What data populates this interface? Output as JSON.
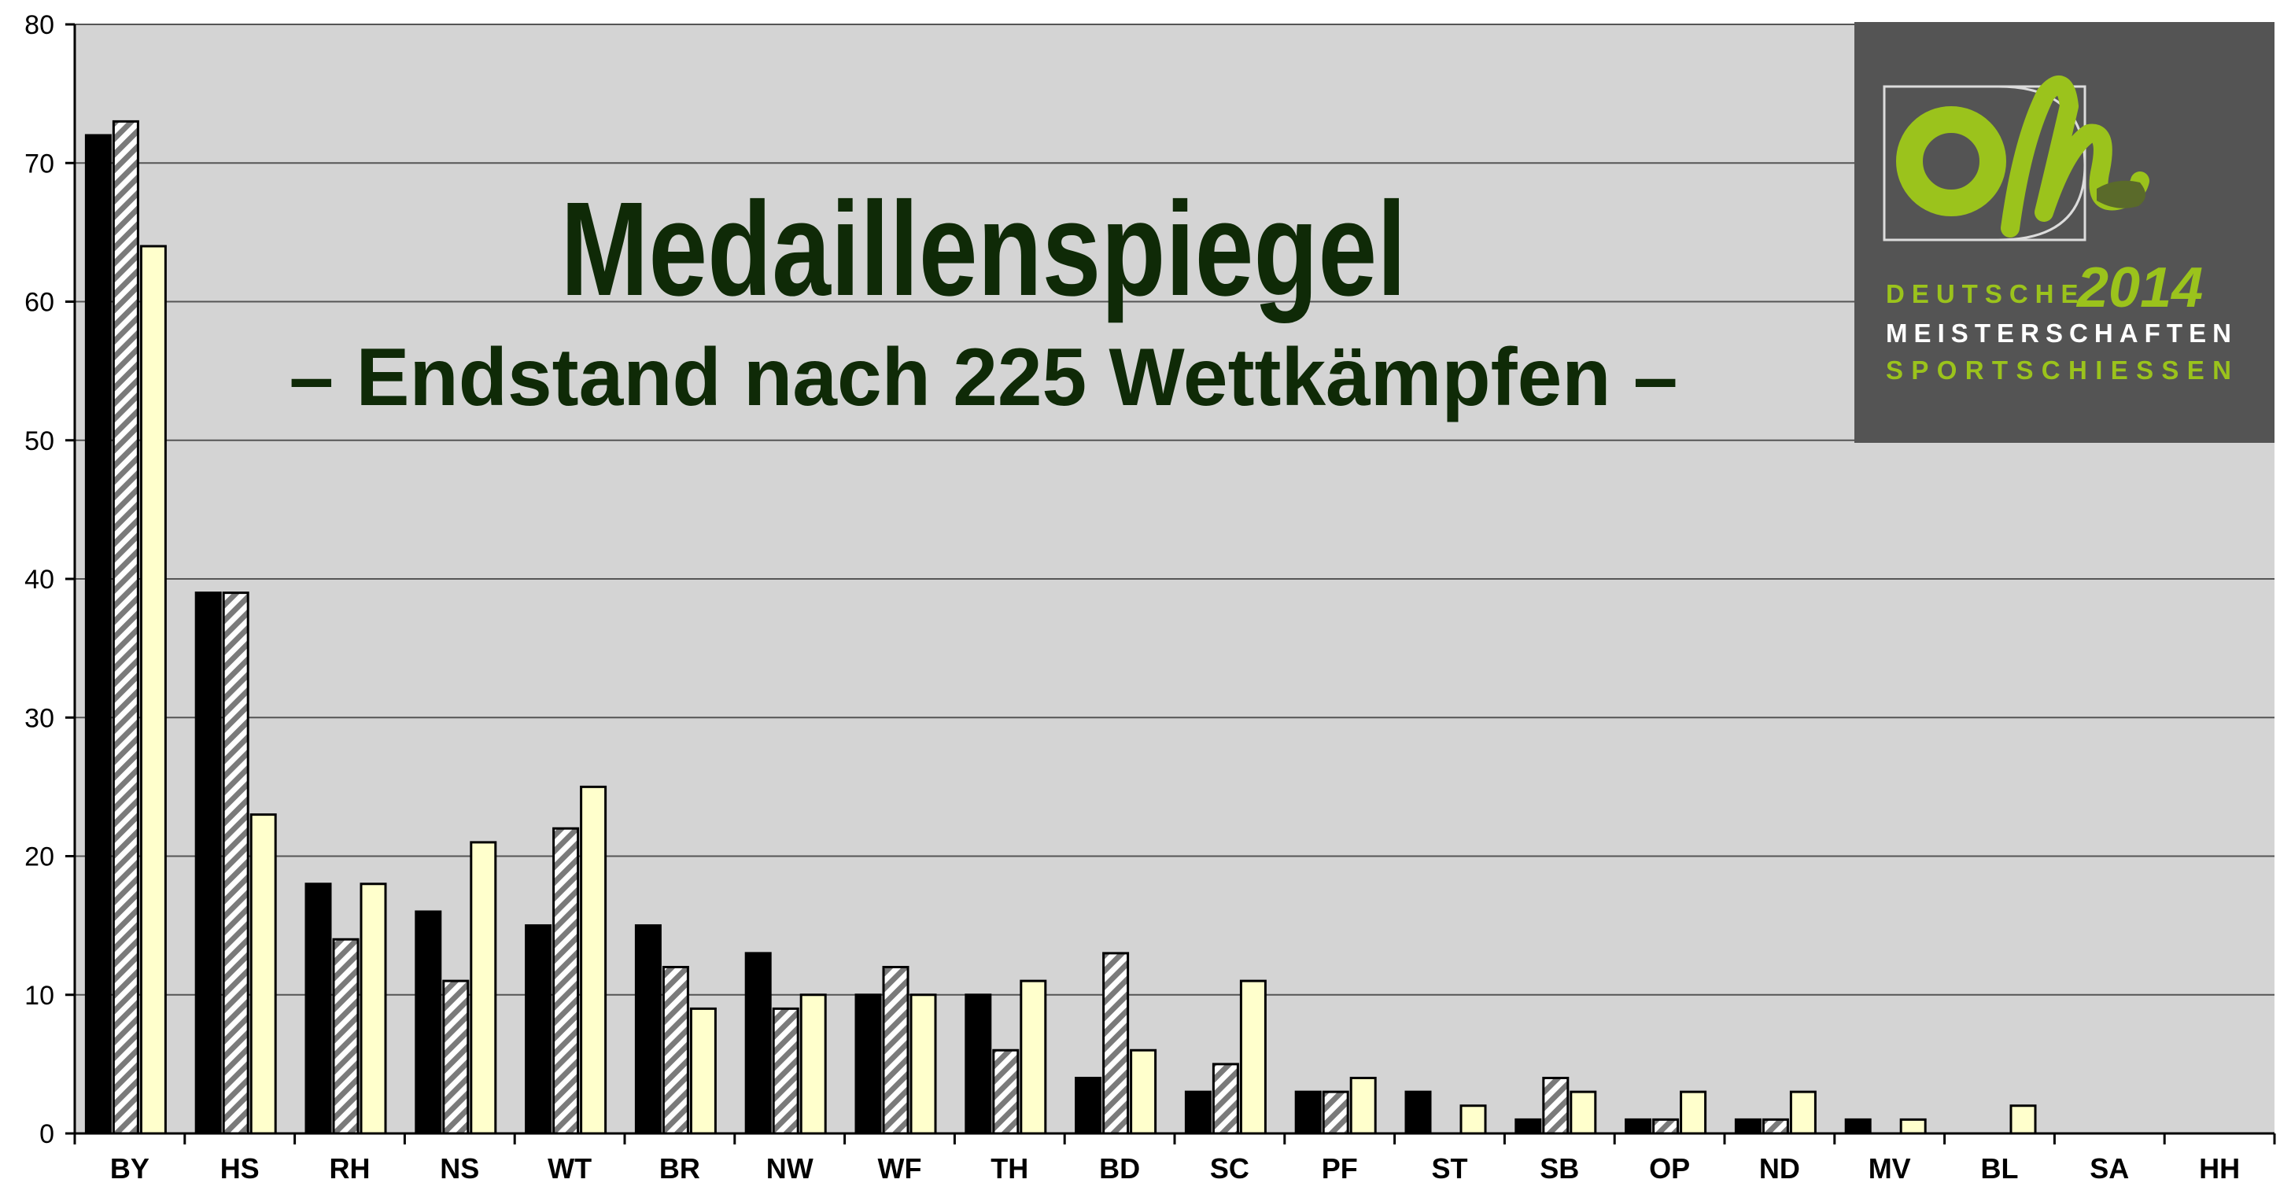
{
  "chart_data": {
    "type": "bar",
    "title": "Medaillenspiegel",
    "subtitle": "– Endstand nach 225 Wettkämpfen –",
    "categories": [
      "BY",
      "HS",
      "RH",
      "NS",
      "WT",
      "BR",
      "NW",
      "WF",
      "TH",
      "BD",
      "SC",
      "PF",
      "ST",
      "SB",
      "OP",
      "ND",
      "MV",
      "BL",
      "SA",
      "HH"
    ],
    "series": [
      {
        "color": "#000000",
        "pattern": "solid-black",
        "values": [
          72,
          39,
          18,
          16,
          15,
          15,
          13,
          10,
          10,
          4,
          3,
          3,
          3,
          1,
          1,
          1,
          1,
          0,
          0,
          0
        ]
      },
      {
        "color": "#ffffff",
        "pattern": "diagonal-hatch",
        "values": [
          73,
          39,
          14,
          11,
          22,
          12,
          9,
          12,
          6,
          13,
          5,
          3,
          0,
          4,
          1,
          1,
          0,
          0,
          0,
          0
        ]
      },
      {
        "color": "#ffffcc",
        "pattern": "solid-light-yellow",
        "values": [
          64,
          23,
          18,
          21,
          25,
          9,
          10,
          10,
          11,
          6,
          11,
          4,
          2,
          3,
          3,
          3,
          1,
          2,
          0,
          0
        ]
      }
    ],
    "ylim": [
      0,
      80
    ],
    "yticks": [
      0,
      10,
      20,
      30,
      40,
      50,
      60,
      70,
      80
    ],
    "grid": true,
    "plot_background": "#d4d4d4"
  },
  "logo": {
    "line1": "DEUTSCHE",
    "year": "2014",
    "line2": "MEISTERSCHAFTEN",
    "line3": "SPORTSCHIESSEN",
    "background": "#545454",
    "accent": "#9bc31c"
  }
}
